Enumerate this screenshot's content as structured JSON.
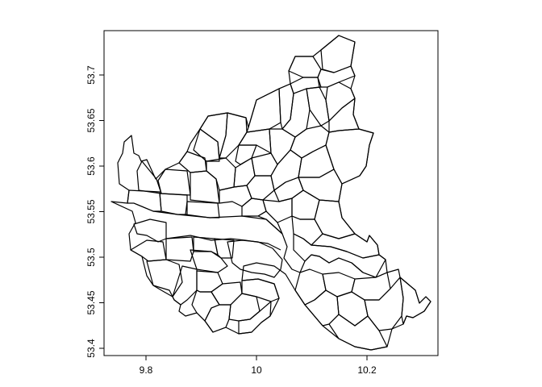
{
  "map": {
    "type": "polygon-outline-map",
    "grid": false,
    "x_axis": {
      "ticks": [
        {
          "value": 9.8,
          "label": "9.8"
        },
        {
          "value": 10.0,
          "label": "10"
        },
        {
          "value": 10.2,
          "label": "10.2"
        }
      ]
    },
    "y_axis": {
      "ticks": [
        {
          "value": 53.4,
          "label": "53.4"
        },
        {
          "value": 53.45,
          "label": "53.45"
        },
        {
          "value": 53.5,
          "label": "53.5"
        },
        {
          "value": 53.55,
          "label": "53.55"
        },
        {
          "value": 53.6,
          "label": "53.6"
        },
        {
          "value": 53.65,
          "label": "53.65"
        },
        {
          "value": 53.7,
          "label": "53.7"
        }
      ]
    },
    "colors": {
      "outline": "#000000",
      "background": "#ffffff"
    }
  }
}
